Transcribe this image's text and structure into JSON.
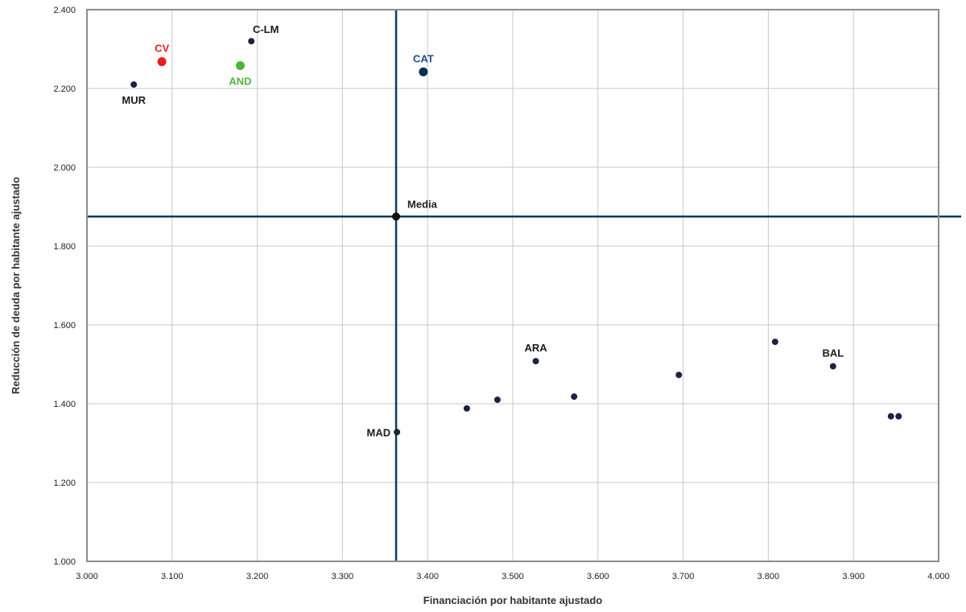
{
  "chart_data": {
    "type": "scatter",
    "title": "",
    "xlabel": "Financiación por habitante ajustado",
    "ylabel": "Reducción de deuda por habitante ajustado",
    "xlim": [
      3000,
      4000
    ],
    "ylim": [
      1000,
      2400
    ],
    "x_ticks": [
      {
        "value": 3000,
        "label": "3.000"
      },
      {
        "value": 3100,
        "label": "3.100"
      },
      {
        "value": 3200,
        "label": "3.200"
      },
      {
        "value": 3300,
        "label": "3.300"
      },
      {
        "value": 3400,
        "label": "3.400"
      },
      {
        "value": 3500,
        "label": "3.500"
      },
      {
        "value": 3600,
        "label": "3.600"
      },
      {
        "value": 3700,
        "label": "3.700"
      },
      {
        "value": 3800,
        "label": "3.800"
      },
      {
        "value": 3900,
        "label": "3.900"
      },
      {
        "value": 4000,
        "label": "4.000"
      }
    ],
    "y_ticks": [
      {
        "value": 1000,
        "label": "1.000"
      },
      {
        "value": 1200,
        "label": "1.200"
      },
      {
        "value": 1400,
        "label": "1.400"
      },
      {
        "value": 1600,
        "label": "1.600"
      },
      {
        "value": 1800,
        "label": "1.800"
      },
      {
        "value": 2000,
        "label": "2.000"
      },
      {
        "value": 2200,
        "label": "2.200"
      },
      {
        "value": 2400,
        "label": "2.400"
      }
    ],
    "grid": true,
    "mean": {
      "x": 3363,
      "y": 1875,
      "label": "Media"
    },
    "colors": {
      "default": "#1b2244",
      "cv": "#ee1c1c",
      "and": "#4cb53a",
      "cat": "#0d2a52",
      "ref_lines": "#123a5c",
      "grid": "#c8c8c8",
      "frame": "#8c8c8c"
    },
    "points": [
      {
        "x": 3055,
        "y": 2210,
        "label": "MUR",
        "color": "#1b2244",
        "label_color": "#1b1b1b",
        "size": "small",
        "label_pos": "below"
      },
      {
        "x": 3088,
        "y": 2268,
        "label": "CV",
        "color": "#ee1c1c",
        "label_color": "#ee1c1c",
        "size": "large",
        "label_pos": "above"
      },
      {
        "x": 3180,
        "y": 2258,
        "label": "AND",
        "color": "#4cb53a",
        "label_color": "#4cb53a",
        "size": "large",
        "label_pos": "below"
      },
      {
        "x": 3193,
        "y": 2320,
        "label": "C-LM",
        "color": "#1b2244",
        "label_color": "#1b1b1b",
        "size": "small",
        "label_pos": "above-right"
      },
      {
        "x": 3395,
        "y": 2242,
        "label": "CAT",
        "color": "#0d2a52",
        "label_color": "#1f4d8a",
        "size": "large",
        "label_pos": "above"
      },
      {
        "x": 3364,
        "y": 1328,
        "label": "MAD",
        "color": "#1b2244",
        "label_color": "#1b1b1b",
        "size": "small",
        "label_pos": "left"
      },
      {
        "x": 3446,
        "y": 1388,
        "label": "",
        "color": "#1b2244",
        "size": "small"
      },
      {
        "x": 3482,
        "y": 1410,
        "label": "",
        "color": "#1b2244",
        "size": "small"
      },
      {
        "x": 3527,
        "y": 1508,
        "label": "ARA",
        "color": "#1b2244",
        "label_color": "#1b1b1b",
        "size": "small",
        "label_pos": "above"
      },
      {
        "x": 3572,
        "y": 1418,
        "label": "",
        "color": "#1b2244",
        "size": "small"
      },
      {
        "x": 3695,
        "y": 1473,
        "label": "",
        "color": "#1b2244",
        "size": "small"
      },
      {
        "x": 3808,
        "y": 1557,
        "label": "",
        "color": "#1b2244",
        "size": "small"
      },
      {
        "x": 3876,
        "y": 1495,
        "label": "BAL",
        "color": "#1b2244",
        "label_color": "#1b1b1b",
        "size": "small",
        "label_pos": "above"
      },
      {
        "x": 3944,
        "y": 1368,
        "label": "",
        "color": "#1b2244",
        "size": "small"
      },
      {
        "x": 3953,
        "y": 1368,
        "label": "",
        "color": "#1b2244",
        "size": "small"
      }
    ]
  }
}
